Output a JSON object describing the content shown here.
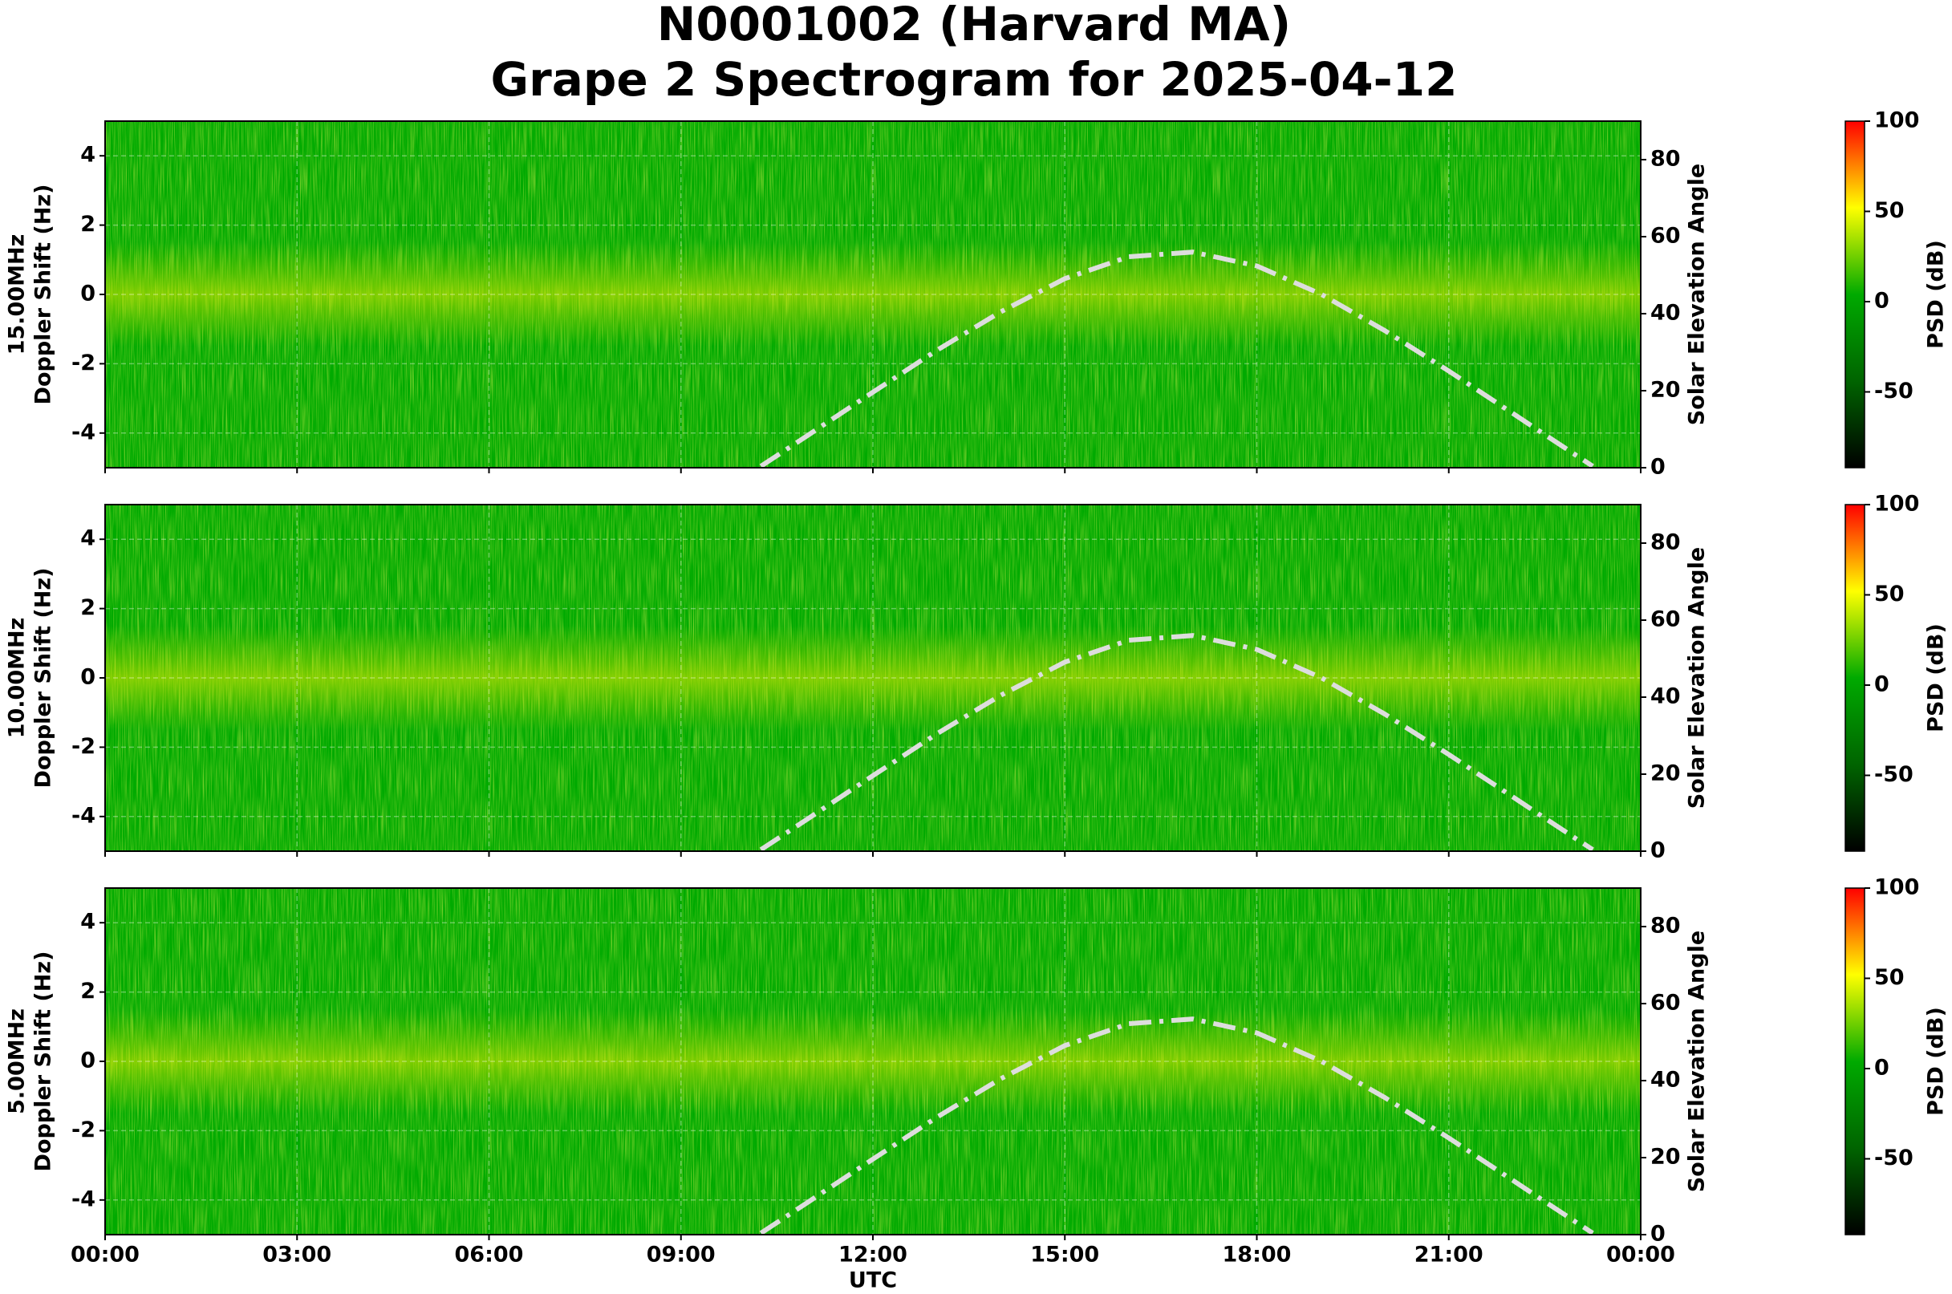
{
  "title": [
    "N0001002 (Harvard MA)",
    "Grape 2 Spectrogram for 2025-04-12"
  ],
  "chart_data": [
    {
      "type": "spectrogram",
      "freq_label": "15.00MHz",
      "ylabel": "Doppler Shift (Hz)",
      "y2label": "Solar Elevation Angle",
      "xlim": [
        0,
        24
      ],
      "ylim": [
        -5,
        5
      ],
      "yticks": [
        -4,
        -2,
        0,
        2,
        4
      ],
      "y2lim": [
        0,
        90
      ],
      "y2ticks": [
        0,
        20,
        40,
        60,
        80
      ],
      "grid": true,
      "series": [
        {
          "axis": "y2",
          "color": "#dddddd",
          "x": [
            10.25,
            11,
            12,
            13,
            14,
            15,
            16,
            17,
            18,
            19,
            20,
            21,
            22,
            23,
            23.25
          ],
          "values": [
            0.4,
            8.6,
            19.6,
            30.5,
            40.5,
            49.1,
            54.8,
            56.0,
            52.4,
            45.1,
            35.6,
            25.1,
            14.1,
            3.1,
            0.4
          ]
        }
      ],
      "colorbar": {
        "label": "PSD (dB)",
        "lim": [
          -92,
          100
        ],
        "ticks": [
          -50,
          0,
          50,
          100
        ],
        "colors": [
          "#000000",
          "#006400",
          "#00aa00",
          "#ffff00",
          "#ff0000"
        ]
      }
    },
    {
      "type": "spectrogram",
      "freq_label": "10.00MHz",
      "ylabel": "Doppler Shift (Hz)",
      "y2label": "Solar Elevation Angle",
      "xlim": [
        0,
        24
      ],
      "ylim": [
        -5,
        5
      ],
      "yticks": [
        -4,
        -2,
        0,
        2,
        4
      ],
      "y2lim": [
        0,
        90
      ],
      "y2ticks": [
        0,
        20,
        40,
        60,
        80
      ],
      "grid": true,
      "series": [
        {
          "axis": "y2",
          "color": "#dddddd",
          "x": [
            10.25,
            11,
            12,
            13,
            14,
            15,
            16,
            17,
            18,
            19,
            20,
            21,
            22,
            23,
            23.25
          ],
          "values": [
            0.4,
            8.6,
            19.6,
            30.5,
            40.5,
            49.1,
            54.8,
            56.0,
            52.4,
            45.1,
            35.6,
            25.1,
            14.1,
            3.1,
            0.4
          ]
        }
      ],
      "colorbar": {
        "label": "PSD (dB)",
        "lim": [
          -92,
          100
        ],
        "ticks": [
          -50,
          0,
          50,
          100
        ],
        "colors": [
          "#000000",
          "#006400",
          "#00aa00",
          "#ffff00",
          "#ff0000"
        ]
      }
    },
    {
      "type": "spectrogram",
      "freq_label": "5.00MHz",
      "ylabel": "Doppler Shift (Hz)",
      "y2label": "Solar Elevation Angle",
      "xlabel": "UTC",
      "xlim": [
        0,
        24
      ],
      "xticks": [
        {
          "value": 0,
          "label": "00:00"
        },
        {
          "value": 3,
          "label": "03:00"
        },
        {
          "value": 6,
          "label": "06:00"
        },
        {
          "value": 9,
          "label": "09:00"
        },
        {
          "value": 12,
          "label": "12:00"
        },
        {
          "value": 15,
          "label": "15:00"
        },
        {
          "value": 18,
          "label": "18:00"
        },
        {
          "value": 21,
          "label": "21:00"
        },
        {
          "value": 24,
          "label": "00:00"
        }
      ],
      "ylim": [
        -5,
        5
      ],
      "yticks": [
        -4,
        -2,
        0,
        2,
        4
      ],
      "y2lim": [
        0,
        90
      ],
      "y2ticks": [
        0,
        20,
        40,
        60,
        80
      ],
      "grid": true,
      "series": [
        {
          "axis": "y2",
          "color": "#dddddd",
          "x": [
            10.25,
            11,
            12,
            13,
            14,
            15,
            16,
            17,
            18,
            19,
            20,
            21,
            22,
            23,
            23.25
          ],
          "values": [
            0.4,
            8.6,
            19.6,
            30.5,
            40.5,
            49.1,
            54.8,
            56.0,
            52.4,
            45.1,
            35.6,
            25.1,
            14.1,
            3.1,
            0.4
          ]
        }
      ],
      "colorbar": {
        "label": "PSD (dB)",
        "lim": [
          -92,
          100
        ],
        "ticks": [
          -50,
          0,
          50,
          100
        ],
        "colors": [
          "#000000",
          "#006400",
          "#00aa00",
          "#ffff00",
          "#ff0000"
        ]
      }
    }
  ]
}
